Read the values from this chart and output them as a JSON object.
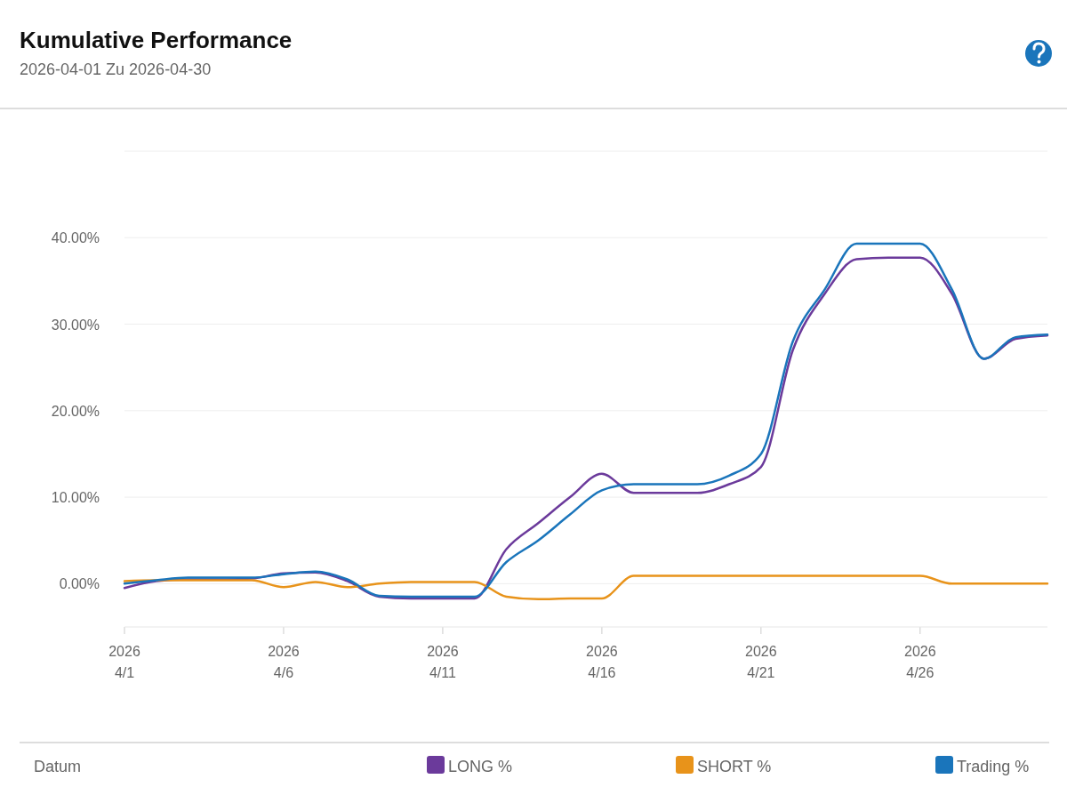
{
  "chart_data": {
    "type": "line",
    "title": "Kumulative Performance",
    "subtitle": "2026-04-01 Zu 2026-04-30",
    "xlabel": "Datum",
    "x": [
      "2026-04-01",
      "2026-04-02",
      "2026-04-03",
      "2026-04-04",
      "2026-04-05",
      "2026-04-06",
      "2026-04-07",
      "2026-04-08",
      "2026-04-09",
      "2026-04-10",
      "2026-04-11",
      "2026-04-12",
      "2026-04-13",
      "2026-04-14",
      "2026-04-15",
      "2026-04-16",
      "2026-04-17",
      "2026-04-18",
      "2026-04-19",
      "2026-04-20",
      "2026-04-21",
      "2026-04-22",
      "2026-04-23",
      "2026-04-24",
      "2026-04-25",
      "2026-04-26",
      "2026-04-27",
      "2026-04-28",
      "2026-04-29",
      "2026-04-30"
    ],
    "series": [
      {
        "name": "LONG %",
        "color": "#6b3a9b",
        "values": [
          -0.5,
          0.3,
          0.5,
          0.5,
          0.6,
          1.2,
          1.3,
          0.3,
          -1.5,
          -1.7,
          -1.7,
          -1.7,
          4,
          7,
          10,
          12.7,
          10.5,
          10.5,
          10.5,
          11.5,
          13.5,
          27,
          33.5,
          37.5,
          37.7,
          37.7,
          33.5,
          26,
          28.3,
          28.7
        ]
      },
      {
        "name": "SHORT %",
        "color": "#e8931a",
        "values": [
          0.3,
          0.4,
          0.4,
          0.4,
          0.4,
          -0.4,
          0.2,
          -0.4,
          0,
          0.2,
          0.2,
          0.2,
          -1.5,
          -1.8,
          -1.7,
          -1.7,
          0.9,
          0.9,
          0.9,
          0.9,
          0.9,
          0.9,
          0.9,
          0.9,
          0.9,
          0.9,
          0,
          0,
          0,
          0
        ]
      },
      {
        "name": "Trading %",
        "color": "#1a75bb",
        "values": [
          0,
          0.4,
          0.7,
          0.7,
          0.7,
          1.1,
          1.4,
          0.5,
          -1.4,
          -1.5,
          -1.5,
          -1.5,
          2.5,
          5,
          8,
          10.8,
          11.5,
          11.5,
          11.5,
          12.5,
          15,
          28,
          34,
          39.3,
          39.3,
          39.3,
          34,
          26,
          28.5,
          28.8
        ]
      }
    ],
    "xlim": [
      "2026-04-01",
      "2026-04-30"
    ],
    "xticks": [
      {
        "value": "2026-04-01",
        "label": "2026\n4/1"
      },
      {
        "value": "2026-04-06",
        "label": "2026\n4/6"
      },
      {
        "value": "2026-04-11",
        "label": "2026\n4/11"
      },
      {
        "value": "2026-04-16",
        "label": "2026\n4/16"
      },
      {
        "value": "2026-04-21",
        "label": "2026\n4/21"
      },
      {
        "value": "2026-04-26",
        "label": "2026\n4/26"
      }
    ],
    "ylim": [
      -5,
      50
    ],
    "yticks": [
      {
        "value": 0,
        "label": "0.00%"
      },
      {
        "value": 10,
        "label": "10.00%"
      },
      {
        "value": 20,
        "label": "20.00%"
      },
      {
        "value": 30,
        "label": "30.00%"
      },
      {
        "value": 40,
        "label": "40.00%"
      },
      {
        "value": 50,
        "label": null
      }
    ],
    "grid": "y",
    "legend": "bottom",
    "marker": "none",
    "line_style": "solid"
  }
}
